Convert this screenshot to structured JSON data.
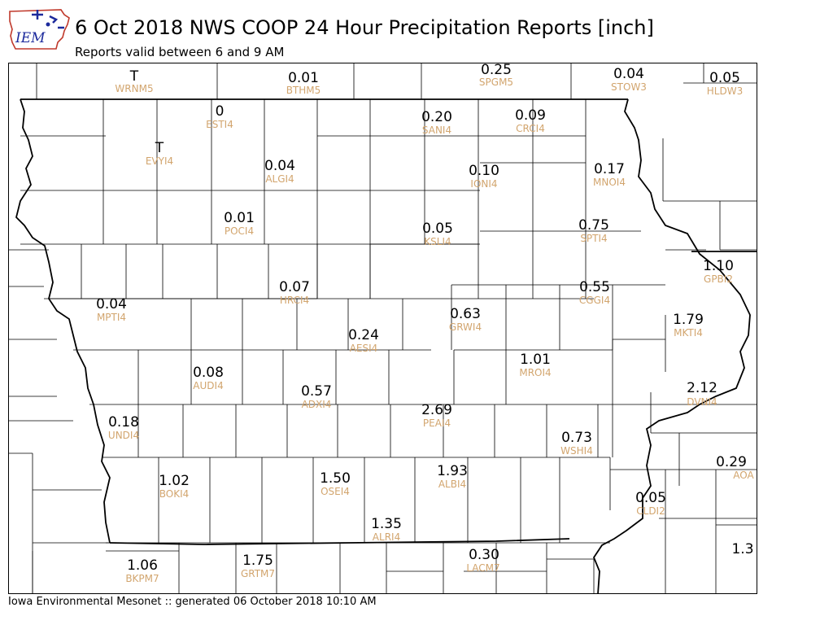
{
  "header": {
    "title": "6 Oct 2018 NWS COOP 24 Hour Precipitation Reports [inch]",
    "subtitle": "Reports valid between 6 and 9 AM",
    "logo_text": "IEM"
  },
  "footer": {
    "text": "Iowa Environmental Mesonet :: generated 06 October 2018 10:10 AM"
  },
  "colors": {
    "value": "#000000",
    "station_id": "#d2a56e",
    "county_line": "#000000",
    "state_line": "#000000",
    "logo_blue": "#1c2a9c",
    "logo_red": "#c0392b"
  },
  "stations": [
    {
      "value": "T",
      "id": "WRNM5"
    },
    {
      "value": "0.01",
      "id": "BTHM5"
    },
    {
      "value": "0.25",
      "id": "SPGM5"
    },
    {
      "value": "0.04",
      "id": "STOW3"
    },
    {
      "value": "0.05",
      "id": "HLDW3"
    },
    {
      "value": "0",
      "id": "ESTI4"
    },
    {
      "value": "0.20",
      "id": "SANI4"
    },
    {
      "value": "0.09",
      "id": "CRCI4"
    },
    {
      "value": "T",
      "id": "EVYI4"
    },
    {
      "value": "0.04",
      "id": "ALGI4"
    },
    {
      "value": "0.10",
      "id": "IONI4"
    },
    {
      "value": "0.17",
      "id": "MNOI4"
    },
    {
      "value": "0.01",
      "id": "POCI4"
    },
    {
      "value": "0.05",
      "id": "KSLI4"
    },
    {
      "value": "0.75",
      "id": "SPTI4"
    },
    {
      "value": "1.10",
      "id": "GPBI2"
    },
    {
      "value": "0.07",
      "id": "HRCI4"
    },
    {
      "value": "0.55",
      "id": "CGGI4"
    },
    {
      "value": "0.04",
      "id": "MPTI4"
    },
    {
      "value": "0.63",
      "id": "GRWI4"
    },
    {
      "value": "1.79",
      "id": "MKTI4"
    },
    {
      "value": "0.24",
      "id": "AESI4"
    },
    {
      "value": "1.01",
      "id": "MROI4"
    },
    {
      "value": "0.08",
      "id": "AUDI4"
    },
    {
      "value": "0.57",
      "id": "ADXI4"
    },
    {
      "value": "2.12",
      "id": "DVNI4"
    },
    {
      "value": "0.18",
      "id": "UNDI4"
    },
    {
      "value": "2.69",
      "id": "PEAI4"
    },
    {
      "value": "0.73",
      "id": "WSHI4"
    },
    {
      "value": "0.29",
      "id": "AOA"
    },
    {
      "value": "1.02",
      "id": "BOKI4"
    },
    {
      "value": "1.50",
      "id": "OSEI4"
    },
    {
      "value": "1.93",
      "id": "ALBI4"
    },
    {
      "value": "0.05",
      "id": "CLDI2"
    },
    {
      "value": "1.35",
      "id": "ALRI4"
    },
    {
      "value": "1.3",
      "id": ""
    },
    {
      "value": "0.30",
      "id": "LACM7"
    },
    {
      "value": "1.06",
      "id": "BKPM7"
    },
    {
      "value": "1.75",
      "id": "GRTM7"
    }
  ]
}
